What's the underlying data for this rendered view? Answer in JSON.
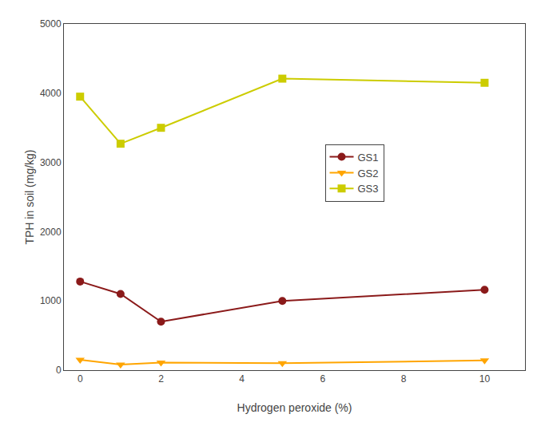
{
  "chart_data": {
    "type": "line",
    "xlabel": "Hydrogen peroxide (%)",
    "ylabel": "TPH in soil (mg/kg)",
    "x": [
      0,
      1,
      2,
      5,
      10
    ],
    "series": [
      {
        "name": "GS1",
        "color": "#8B1A1A",
        "marker": "circle",
        "values": [
          1280,
          1100,
          700,
          1000,
          1160
        ]
      },
      {
        "name": "GS2",
        "color": "#FFA500",
        "marker": "triangle-down",
        "values": [
          150,
          80,
          110,
          100,
          140
        ]
      },
      {
        "name": "GS3",
        "color": "#CCCC00",
        "marker": "square",
        "values": [
          3950,
          3270,
          3500,
          4210,
          4150
        ]
      }
    ],
    "xlim": [
      -0.4,
      11.0
    ],
    "xticks": [
      0,
      2,
      4,
      6,
      8,
      10
    ],
    "ylim": [
      0,
      5000
    ],
    "yticks": [
      0,
      1000,
      2000,
      3000,
      4000,
      5000
    ],
    "grid": false,
    "legend": "center"
  }
}
